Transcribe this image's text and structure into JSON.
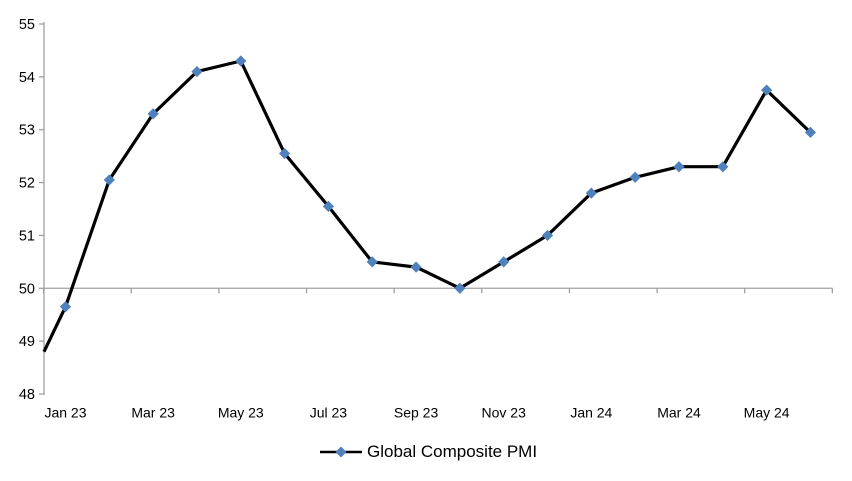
{
  "chart_data": {
    "type": "line",
    "title": "",
    "legend": {
      "label": "Global Composite PMI",
      "position": "bottom-center"
    },
    "categories": [
      "Jan 23",
      "Feb 23",
      "Mar 23",
      "Apr 23",
      "May 23",
      "Jun 23",
      "Jul 23",
      "Aug 23",
      "Sep 23",
      "Oct 23",
      "Nov 23",
      "Dec 23",
      "Jan 24",
      "Feb 24",
      "Mar 24",
      "Apr 24",
      "May 24",
      "Jun 24"
    ],
    "series": [
      {
        "name": "Global Composite PMI",
        "values": [
          49.65,
          52.05,
          53.3,
          54.1,
          54.3,
          52.55,
          51.55,
          50.5,
          50.4,
          50.0,
          50.5,
          51.0,
          51.8,
          52.1,
          52.3,
          52.3,
          53.75,
          52.95
        ]
      }
    ],
    "left_clipped_entry_value": 48.8,
    "x_tick_labels": [
      "Jan 23",
      "Mar 23",
      "May 23",
      "Jul 23",
      "Sep 23",
      "Nov 23",
      "Jan 24",
      "Mar 24",
      "May 24"
    ],
    "y_axis": {
      "min": 48,
      "max": 55,
      "step": 1,
      "ticks": [
        55,
        54,
        53,
        52,
        51,
        50,
        49,
        48
      ]
    },
    "x_axis_crosses_at": 50,
    "grid": "off",
    "marker_shape": "diamond",
    "colors": {
      "line": "#000000",
      "marker": "#4F81BD",
      "axis": "#A0A0A0",
      "text": "#000000",
      "background": "#FFFFFF"
    }
  }
}
